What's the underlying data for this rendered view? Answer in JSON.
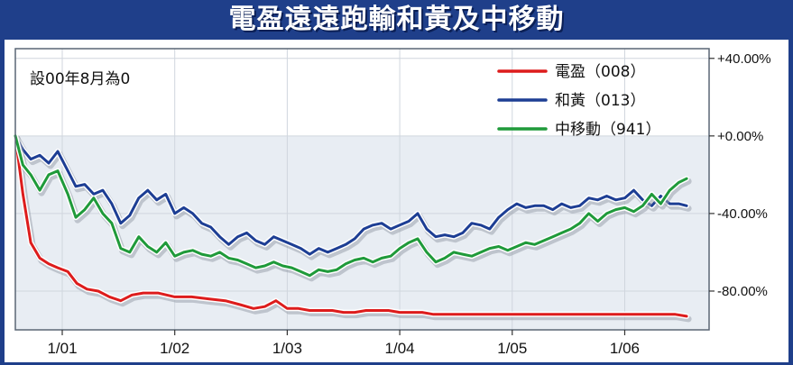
{
  "title": "電盈遠遠跑輸和黃及中移動",
  "note": "設00年8月為0",
  "colors": {
    "frame": "#1f3f8a",
    "plot_background": "#e8edf3",
    "grid": "#d0d6de",
    "series": [
      "#dd1c1c",
      "#1d3e94",
      "#1f9a3a"
    ]
  },
  "chart_data": {
    "type": "line",
    "title": "電盈遠遠跑輸和黃及中移動",
    "xlabel": "",
    "ylabel": "",
    "y_axis_position": "right",
    "ylim": [
      -100,
      45
    ],
    "xlim": [
      2000.583,
      2006.75
    ],
    "x_ticks": [
      {
        "label": "1/01",
        "value": 2001.0
      },
      {
        "label": "1/02",
        "value": 2002.0
      },
      {
        "label": "1/03",
        "value": 2003.0
      },
      {
        "label": "1/04",
        "value": 2004.0
      },
      {
        "label": "1/05",
        "value": 2005.0
      },
      {
        "label": "1/06",
        "value": 2006.0
      }
    ],
    "y_ticks": [
      {
        "label": "+40.00%",
        "value": 40
      },
      {
        "label": "+0.00%",
        "value": 0
      },
      {
        "label": "-40.00%",
        "value": -40
      },
      {
        "label": "-80.00%",
        "value": -80
      }
    ],
    "grid": true,
    "legend_position": "top-right",
    "annotation": "設00年8月為0",
    "series": [
      {
        "name": "電盈（008）",
        "x": [
          2000.583,
          2000.65,
          2000.72,
          2000.8,
          2000.88,
          2000.96,
          2001.05,
          2001.13,
          2001.22,
          2001.32,
          2001.42,
          2001.52,
          2001.62,
          2001.72,
          2001.85,
          2002.0,
          2002.15,
          2002.3,
          2002.45,
          2002.58,
          2002.7,
          2002.8,
          2002.9,
          2003.0,
          2003.1,
          2003.2,
          2003.3,
          2003.4,
          2003.5,
          2003.6,
          2003.7,
          2003.8,
          2003.9,
          2004.0,
          2004.1,
          2004.2,
          2004.3,
          2004.5,
          2004.7,
          2004.9,
          2005.1,
          2005.3,
          2005.5,
          2005.7,
          2005.9,
          2006.1,
          2006.3,
          2006.45,
          2006.55
        ],
        "values": [
          0,
          -30,
          -55,
          -63,
          -66,
          -68,
          -70,
          -76,
          -79,
          -80,
          -83,
          -85,
          -82,
          -81,
          -81,
          -83,
          -83,
          -84,
          -85,
          -87,
          -89,
          -88,
          -85,
          -89,
          -89,
          -90,
          -90,
          -90,
          -91,
          -91,
          -90,
          -90,
          -90,
          -91,
          -91,
          -91,
          -92,
          -92,
          -92,
          -92,
          -92,
          -92,
          -92,
          -92,
          -92,
          -92,
          -92,
          -92,
          -93
        ]
      },
      {
        "name": "和黃（013）",
        "x": [
          2000.583,
          2000.65,
          2000.72,
          2000.8,
          2000.88,
          2000.96,
          2001.05,
          2001.12,
          2001.2,
          2001.28,
          2001.36,
          2001.44,
          2001.52,
          2001.6,
          2001.68,
          2001.76,
          2001.84,
          2001.92,
          2002.0,
          2002.08,
          2002.16,
          2002.24,
          2002.32,
          2002.4,
          2002.48,
          2002.56,
          2002.64,
          2002.72,
          2002.8,
          2002.88,
          2002.96,
          2003.04,
          2003.12,
          2003.2,
          2003.28,
          2003.36,
          2003.44,
          2003.52,
          2003.6,
          2003.68,
          2003.76,
          2003.84,
          2003.92,
          2004.0,
          2004.08,
          2004.16,
          2004.24,
          2004.32,
          2004.4,
          2004.48,
          2004.56,
          2004.64,
          2004.72,
          2004.8,
          2004.88,
          2004.96,
          2005.04,
          2005.12,
          2005.2,
          2005.28,
          2005.36,
          2005.44,
          2005.52,
          2005.6,
          2005.68,
          2005.76,
          2005.84,
          2005.92,
          2006.0,
          2006.08,
          2006.16,
          2006.24,
          2006.32,
          2006.4,
          2006.48,
          2006.55
        ],
        "values": [
          0,
          -7,
          -12,
          -10,
          -14,
          -8,
          -18,
          -26,
          -25,
          -30,
          -28,
          -35,
          -45,
          -41,
          -32,
          -28,
          -33,
          -30,
          -40,
          -37,
          -40,
          -45,
          -47,
          -52,
          -56,
          -52,
          -50,
          -54,
          -56,
          -52,
          -54,
          -56,
          -58,
          -61,
          -58,
          -60,
          -58,
          -56,
          -53,
          -48,
          -46,
          -45,
          -48,
          -46,
          -44,
          -40,
          -48,
          -52,
          -51,
          -52,
          -50,
          -45,
          -46,
          -48,
          -42,
          -38,
          -35,
          -37,
          -36,
          -36,
          -38,
          -35,
          -37,
          -36,
          -32,
          -33,
          -31,
          -33,
          -32,
          -28,
          -33,
          -36,
          -31,
          -35,
          -35,
          -36
        ]
      },
      {
        "name": "中移動（941）",
        "x": [
          2000.583,
          2000.65,
          2000.72,
          2000.8,
          2000.88,
          2000.96,
          2001.05,
          2001.12,
          2001.2,
          2001.28,
          2001.36,
          2001.44,
          2001.52,
          2001.6,
          2001.68,
          2001.76,
          2001.84,
          2001.92,
          2002.0,
          2002.08,
          2002.16,
          2002.24,
          2002.32,
          2002.4,
          2002.48,
          2002.56,
          2002.64,
          2002.72,
          2002.8,
          2002.88,
          2002.96,
          2003.04,
          2003.12,
          2003.2,
          2003.28,
          2003.36,
          2003.44,
          2003.52,
          2003.6,
          2003.68,
          2003.76,
          2003.84,
          2003.92,
          2004.0,
          2004.08,
          2004.16,
          2004.24,
          2004.32,
          2004.4,
          2004.48,
          2004.56,
          2004.64,
          2004.72,
          2004.8,
          2004.88,
          2004.96,
          2005.04,
          2005.12,
          2005.2,
          2005.28,
          2005.36,
          2005.44,
          2005.52,
          2005.6,
          2005.68,
          2005.76,
          2005.84,
          2005.92,
          2006.0,
          2006.08,
          2006.16,
          2006.24,
          2006.32,
          2006.4,
          2006.48,
          2006.55
        ],
        "values": [
          0,
          -15,
          -20,
          -28,
          -20,
          -18,
          -30,
          -42,
          -38,
          -32,
          -40,
          -45,
          -58,
          -60,
          -52,
          -57,
          -60,
          -55,
          -62,
          -60,
          -59,
          -61,
          -62,
          -60,
          -63,
          -64,
          -66,
          -68,
          -67,
          -65,
          -67,
          -68,
          -70,
          -72,
          -69,
          -70,
          -69,
          -66,
          -64,
          -63,
          -65,
          -63,
          -62,
          -58,
          -55,
          -53,
          -60,
          -65,
          -63,
          -60,
          -61,
          -62,
          -60,
          -58,
          -57,
          -59,
          -57,
          -55,
          -56,
          -54,
          -52,
          -50,
          -48,
          -45,
          -40,
          -44,
          -40,
          -38,
          -37,
          -39,
          -36,
          -30,
          -35,
          -28,
          -24,
          -22
        ]
      }
    ]
  }
}
